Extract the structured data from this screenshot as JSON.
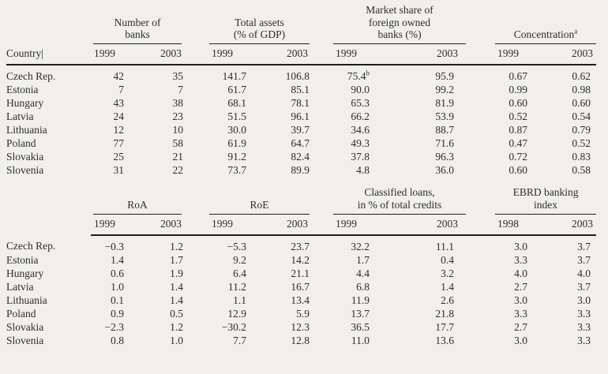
{
  "colors": {
    "background": "#f0efec",
    "text": "#2e2d2b",
    "rule": "#1f1e1c"
  },
  "table1": {
    "country_header": "Country|",
    "groups": [
      {
        "label": "Number of\nbanks",
        "sup": "",
        "years": [
          "1999",
          "2003"
        ]
      },
      {
        "label": "Total assets\n(% of GDP)",
        "sup": "",
        "years": [
          "1999",
          "2003"
        ]
      },
      {
        "label": "Market share of\nforeign owned\nbanks (%)",
        "sup": "",
        "years": [
          "1999",
          "2003"
        ]
      },
      {
        "label": "Concentration",
        "sup": "a",
        "years": [
          "1999",
          "2003"
        ]
      }
    ],
    "rows": [
      [
        "Czech Rep.",
        "42",
        "35",
        "141.7",
        "106.8",
        {
          "v": "75.4",
          "sup": "b"
        },
        "95.9",
        "0.67",
        "0.62"
      ],
      [
        "Estonia",
        "7",
        "7",
        "61.7",
        "85.1",
        "90.0",
        "99.2",
        "0.99",
        "0.98"
      ],
      [
        "Hungary",
        "43",
        "38",
        "68.1",
        "78.1",
        "65.3",
        "81.9",
        "0.60",
        "0.60"
      ],
      [
        "Latvia",
        "24",
        "23",
        "51.5",
        "96.1",
        "66.2",
        "53.9",
        "0.52",
        "0.54"
      ],
      [
        "Lithuania",
        "12",
        "10",
        "30.0",
        "39.7",
        "34.6",
        "88.7",
        "0.87",
        "0.79"
      ],
      [
        "Poland",
        "77",
        "58",
        "61.9",
        "64.7",
        "49.3",
        "71.6",
        "0.47",
        "0.52"
      ],
      [
        "Slovakia",
        "25",
        "21",
        "91.2",
        "82.4",
        "37.8",
        "96.3",
        "0.72",
        "0.83"
      ],
      [
        "Slovenia",
        "31",
        "22",
        "73.7",
        "89.9",
        "4.8",
        "36.0",
        "0.60",
        "0.58"
      ]
    ]
  },
  "table2": {
    "country_header": "",
    "groups": [
      {
        "label": "RoA",
        "sup": "",
        "years": [
          "1999",
          "2003"
        ]
      },
      {
        "label": "RoE",
        "sup": "",
        "years": [
          "1999",
          "2003"
        ]
      },
      {
        "label": "Classified loans,\nin % of total credits",
        "sup": "",
        "years": [
          "1999",
          "2003"
        ]
      },
      {
        "label": "EBRD banking\nindex",
        "sup": "",
        "years": [
          "1998",
          "2003"
        ]
      }
    ],
    "rows": [
      [
        "Czech Rep.",
        "−0.3",
        "1.2",
        "−5.3",
        "23.7",
        "32.2",
        "11.1",
        "3.0",
        "3.7"
      ],
      [
        "Estonia",
        "1.4",
        "1.7",
        "9.2",
        "14.2",
        "1.7",
        "0.4",
        "3.3",
        "3.7"
      ],
      [
        "Hungary",
        "0.6",
        "1.9",
        "6.4",
        "21.1",
        "4.4",
        "3.2",
        "4.0",
        "4.0"
      ],
      [
        "Latvia",
        "1.0",
        "1.4",
        "11.2",
        "16.7",
        "6.8",
        "1.4",
        "2.7",
        "3.7"
      ],
      [
        "Lithuania",
        "0.1",
        "1.4",
        "1.1",
        "13.4",
        "11.9",
        "2.6",
        "3.0",
        "3.0"
      ],
      [
        "Poland",
        "0.9",
        "0.5",
        "12.9",
        "5.9",
        "13.7",
        "21.8",
        "3.3",
        "3.3"
      ],
      [
        "Slovakia",
        "−2.3",
        "1.2",
        "−30.2",
        "12.3",
        "36.5",
        "17.7",
        "2.7",
        "3.3"
      ],
      [
        "Slovenia",
        "0.8",
        "1.0",
        "7.7",
        "12.8",
        "11.0",
        "13.6",
        "3.0",
        "3.3"
      ]
    ]
  }
}
